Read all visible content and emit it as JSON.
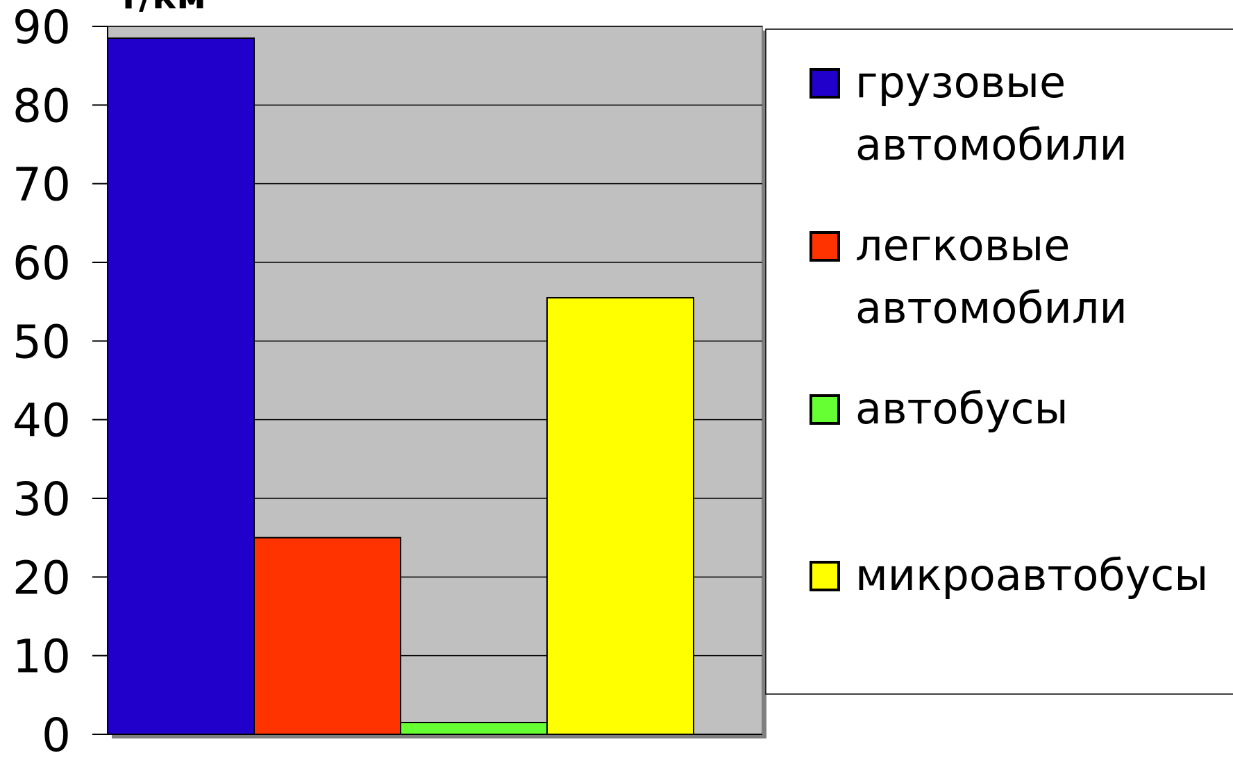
{
  "chart_data": {
    "type": "bar",
    "ylabel": "т/км",
    "ylim": [
      0,
      90
    ],
    "yticks": [
      0,
      10,
      20,
      30,
      40,
      50,
      60,
      70,
      80,
      90
    ],
    "grid": true,
    "legend_position": "right",
    "series": [
      {
        "name": "грузовые автомобили",
        "value": 88.5,
        "color": "#2200CC"
      },
      {
        "name": "легковые автомобили",
        "value": 25,
        "color": "#FF3300"
      },
      {
        "name": "автобусы",
        "value": 1.5,
        "color": "#66FF33"
      },
      {
        "name": "микроавтобусы",
        "value": 55.5,
        "color": "#FFFF00"
      }
    ]
  }
}
